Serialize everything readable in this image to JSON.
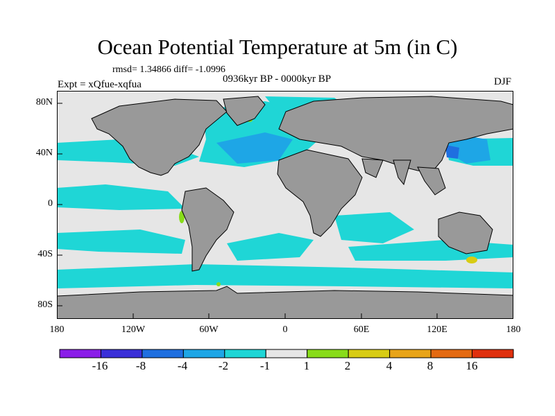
{
  "title": "Ocean Potential Temperature at 5m (in C)",
  "stats": "rmsd= 1.34866 diff= -1.0996",
  "period": "0936kyr BP - 0000kyr BP",
  "experiment": "Expt = xQfue-xqfua",
  "season": "DJF",
  "lat_labels": [
    "80N",
    "40N",
    "0",
    "40S",
    "80S"
  ],
  "lon_labels": [
    "180",
    "120W",
    "60W",
    "0",
    "60E",
    "120E",
    "180"
  ],
  "colorbar": {
    "labels": [
      "-16",
      "-8",
      "-4",
      "-2",
      "-1",
      "1",
      "2",
      "4",
      "8",
      "16"
    ],
    "colors": [
      "#8a1de8",
      "#3a2fd8",
      "#1f6fe0",
      "#1ea6e6",
      "#1fd6d6",
      "#e6e6e6",
      "#88dc1a",
      "#d8cc14",
      "#e8a418",
      "#e46a12",
      "#e0300e"
    ]
  },
  "colors": {
    "land": "#999999",
    "neutral": "#e6e6e6",
    "cyan": "#1fd6d6",
    "light_blue": "#1ea6e6",
    "blue": "#1f6fe0",
    "green": "#88dc1a",
    "yellow": "#d8cc14"
  }
}
